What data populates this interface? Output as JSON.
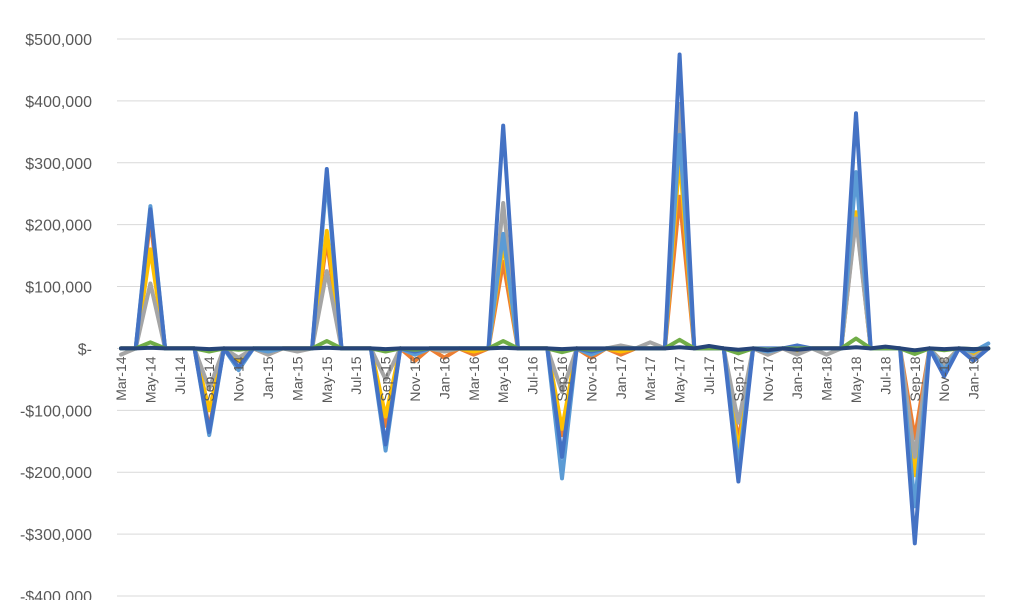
{
  "chart_data": {
    "type": "line",
    "ylim": [
      -400000,
      500000
    ],
    "y_ticks": [
      500000,
      400000,
      300000,
      200000,
      100000,
      0,
      -100000,
      -200000,
      -300000,
      -400000
    ],
    "y_tick_labels": [
      "$500,000",
      "$400,000",
      "$300,000",
      "$200,000",
      "$100,000",
      "$-",
      "-$100,000",
      "-$200,000",
      "-$300,000",
      "-$400,000"
    ],
    "grid": true,
    "legend": "none",
    "x": [
      "Mar-14",
      "Apr-14",
      "May-14",
      "Jun-14",
      "Jul-14",
      "Aug-14",
      "Sep-14",
      "Oct-14",
      "Nov-14",
      "Dec-14",
      "Jan-15",
      "Feb-15",
      "Mar-15",
      "Apr-15",
      "May-15",
      "Jun-15",
      "Jul-15",
      "Aug-15",
      "Sep-15",
      "Oct-15",
      "Nov-15",
      "Dec-15",
      "Jan-16",
      "Feb-16",
      "Mar-16",
      "Apr-16",
      "May-16",
      "Jun-16",
      "Jul-16",
      "Aug-16",
      "Sep-16",
      "Oct-16",
      "Nov-16",
      "Dec-16",
      "Jan-17",
      "Feb-17",
      "Mar-17",
      "Apr-17",
      "May-17",
      "Jun-17",
      "Jul-17",
      "Aug-17",
      "Sep-17",
      "Oct-17",
      "Nov-17",
      "Dec-17",
      "Jan-18",
      "Feb-18",
      "Mar-18",
      "Apr-18",
      "May-18",
      "Jun-18",
      "Jul-18",
      "Aug-18",
      "Sep-18",
      "Oct-18",
      "Nov-18",
      "Dec-18",
      "Jan-19",
      "Feb-19"
    ],
    "x_tick_labels": [
      "Mar-14",
      "May-14",
      "Jul-14",
      "Sep-14",
      "Nov-14",
      "Jan-15",
      "Mar-15",
      "May-15",
      "Jul-15",
      "Sep-15",
      "Nov-15",
      "Jan-16",
      "Mar-16",
      "May-16",
      "Jul-16",
      "Sep-16",
      "Nov-16",
      "Jan-17",
      "Mar-17",
      "May-17",
      "Jul-17",
      "Sep-17",
      "Nov-17",
      "Jan-18",
      "Mar-18",
      "May-18",
      "Jul-18",
      "Sep-18",
      "Nov-18",
      "Jan-19"
    ],
    "series": [
      {
        "color": "#ed7d31",
        "values": [
          0,
          0,
          210000,
          0,
          0,
          0,
          -130000,
          0,
          -30000,
          0,
          -10000,
          0,
          0,
          0,
          175000,
          0,
          0,
          0,
          -125000,
          0,
          -20000,
          0,
          -15000,
          0,
          -10000,
          0,
          140000,
          0,
          0,
          0,
          -140000,
          0,
          -15000,
          0,
          -10000,
          0,
          0,
          0,
          245000,
          0,
          0,
          0,
          -150000,
          0,
          -10000,
          0,
          -5000,
          0,
          0,
          0,
          215000,
          0,
          0,
          0,
          -145000,
          0,
          -30000,
          0,
          -15000,
          0
        ]
      },
      {
        "color": "#ffc000",
        "values": [
          0,
          0,
          160000,
          0,
          0,
          0,
          -100000,
          0,
          -20000,
          0,
          -5000,
          0,
          0,
          0,
          190000,
          0,
          0,
          0,
          -110000,
          0,
          -10000,
          0,
          -5000,
          0,
          -5000,
          0,
          170000,
          0,
          0,
          0,
          -130000,
          0,
          -10000,
          0,
          -5000,
          0,
          0,
          0,
          310000,
          0,
          0,
          0,
          -165000,
          0,
          -5000,
          0,
          -5000,
          0,
          0,
          0,
          220000,
          0,
          0,
          0,
          -205000,
          0,
          -25000,
          0,
          -10000,
          0
        ]
      },
      {
        "color": "#a5a5a5",
        "values": [
          -10000,
          0,
          105000,
          0,
          0,
          0,
          -65000,
          0,
          -15000,
          0,
          -10000,
          0,
          -5000,
          0,
          125000,
          0,
          0,
          0,
          -50000,
          0,
          -10000,
          0,
          -5000,
          0,
          0,
          0,
          235000,
          0,
          0,
          0,
          -70000,
          0,
          -5000,
          0,
          5000,
          0,
          10000,
          0,
          395000,
          0,
          0,
          0,
          -120000,
          0,
          -10000,
          0,
          -10000,
          0,
          -10000,
          0,
          210000,
          0,
          0,
          0,
          -175000,
          0,
          -25000,
          0,
          -15000,
          0
        ]
      },
      {
        "color": "#5b9bd5",
        "values": [
          0,
          0,
          230000,
          0,
          0,
          0,
          -140000,
          0,
          -35000,
          0,
          -5000,
          0,
          0,
          0,
          275000,
          0,
          0,
          0,
          -165000,
          0,
          -10000,
          0,
          0,
          0,
          0,
          0,
          185000,
          0,
          0,
          0,
          -210000,
          0,
          -10000,
          0,
          0,
          0,
          0,
          0,
          345000,
          0,
          0,
          0,
          -190000,
          0,
          -5000,
          0,
          0,
          0,
          0,
          0,
          285000,
          0,
          0,
          0,
          -255000,
          0,
          -35000,
          0,
          -5000,
          8000
        ]
      },
      {
        "color": "#4472c4",
        "values": [
          0,
          0,
          225000,
          0,
          0,
          0,
          -135000,
          0,
          -30000,
          0,
          0,
          0,
          0,
          0,
          290000,
          0,
          0,
          0,
          -155000,
          0,
          -5000,
          0,
          0,
          0,
          0,
          0,
          360000,
          0,
          0,
          0,
          -175000,
          0,
          -5000,
          0,
          0,
          0,
          0,
          0,
          475000,
          0,
          0,
          0,
          -215000,
          0,
          0,
          0,
          5000,
          0,
          0,
          0,
          380000,
          0,
          0,
          0,
          -315000,
          0,
          -45000,
          0,
          -20000,
          0
        ]
      },
      {
        "color": "#70ad47",
        "values": [
          0,
          0,
          10000,
          0,
          0,
          0,
          -5000,
          0,
          -2000,
          0,
          0,
          0,
          0,
          0,
          12000,
          0,
          0,
          0,
          -5000,
          0,
          -2000,
          0,
          0,
          0,
          0,
          0,
          12000,
          0,
          0,
          0,
          -6000,
          0,
          -2000,
          0,
          0,
          0,
          0,
          0,
          14000,
          0,
          0,
          0,
          -8000,
          0,
          -2000,
          0,
          0,
          0,
          0,
          0,
          16000,
          0,
          0,
          0,
          -9000,
          0,
          -3000,
          0,
          -1000,
          0
        ]
      },
      {
        "color": "#264478",
        "values": [
          0,
          0,
          1000,
          0,
          0,
          0,
          -1000,
          0,
          0,
          0,
          0,
          0,
          0,
          0,
          1000,
          0,
          0,
          0,
          -1000,
          0,
          0,
          0,
          0,
          0,
          0,
          0,
          1000,
          0,
          0,
          0,
          -1000,
          0,
          0,
          0,
          0,
          0,
          0,
          0,
          2000,
          0,
          4000,
          0,
          -2000,
          0,
          -3000,
          0,
          -2000,
          0,
          0,
          0,
          2000,
          0,
          3000,
          0,
          -3000,
          0,
          -1000,
          0,
          -1000,
          0
        ]
      }
    ]
  }
}
